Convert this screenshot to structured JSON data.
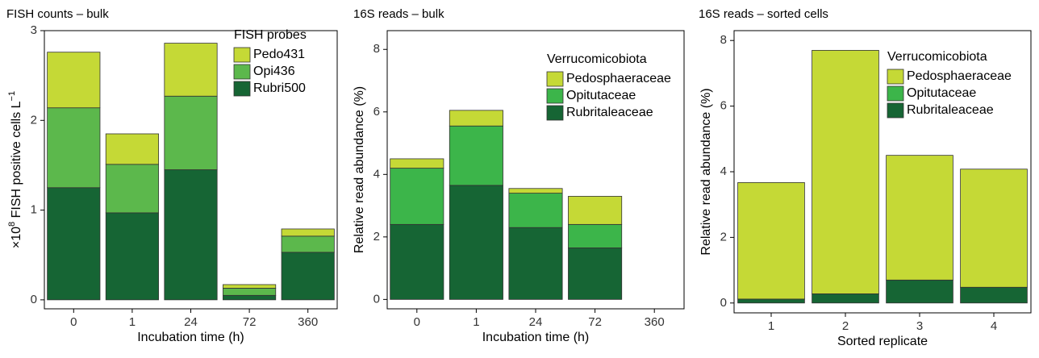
{
  "chart_data": [
    {
      "type": "bar",
      "stacked": true,
      "title": "FISH counts – bulk",
      "ylabel_parts": [
        "×10",
        "8",
        " FISH positive cells L",
        "−1"
      ],
      "xlabel": "Incubation time (h)",
      "legend_title": "FISH probes",
      "categories": [
        "0",
        "1",
        "24",
        "72",
        "360"
      ],
      "series": [
        {
          "name": "Rubri500",
          "color": "#166534",
          "values": [
            1.25,
            0.97,
            1.45,
            0.05,
            0.53
          ]
        },
        {
          "name": "Opi436",
          "color": "#5cb84c",
          "values": [
            0.89,
            0.54,
            0.82,
            0.08,
            0.18
          ]
        },
        {
          "name": "Pedo431",
          "color": "#c5d936",
          "values": [
            0.62,
            0.34,
            0.59,
            0.04,
            0.08
          ]
        }
      ],
      "ylim": [
        -0.1,
        3
      ],
      "yticks": [
        0,
        1,
        2,
        3
      ]
    },
    {
      "type": "bar",
      "stacked": true,
      "title": "16S reads – bulk",
      "ylabel_parts": [
        "Relative read abundance (%)"
      ],
      "xlabel": "Incubation time (h)",
      "legend_title": "Verrucomicobiota",
      "categories": [
        "0",
        "1",
        "24",
        "72",
        "360"
      ],
      "series": [
        {
          "name": "Rubritaleaceae",
          "color": "#166534",
          "values": [
            2.4,
            3.65,
            2.3,
            1.65,
            null
          ]
        },
        {
          "name": "Opitutaceae",
          "color": "#3cb54a",
          "values": [
            1.8,
            1.9,
            1.1,
            0.75,
            null
          ]
        },
        {
          "name": "Pedosphaeraceae",
          "color": "#c5d936",
          "values": [
            0.3,
            0.5,
            0.15,
            0.9,
            null
          ]
        }
      ],
      "ylim": [
        -0.3,
        8.6
      ],
      "yticks": [
        0,
        2,
        4,
        6,
        8
      ]
    },
    {
      "type": "bar",
      "stacked": true,
      "title": "16S reads – sorted cells",
      "ylabel_parts": [
        "Relative read abundance (%)"
      ],
      "xlabel": "Sorted replicate",
      "legend_title": "Verrucomicobiota",
      "categories": [
        "1",
        "2",
        "3",
        "4"
      ],
      "series": [
        {
          "name": "Rubritaleaceae",
          "color": "#166534",
          "values": [
            0.12,
            0.28,
            0.7,
            0.48
          ]
        },
        {
          "name": "Opitutaceae",
          "color": "#3cb54a",
          "values": [
            0,
            0,
            0,
            0
          ]
        },
        {
          "name": "Pedosphaeraceae",
          "color": "#c5d936",
          "values": [
            3.55,
            7.42,
            3.8,
            3.6
          ]
        }
      ],
      "ylim": [
        -0.3,
        8.3
      ],
      "yticks": [
        0,
        2,
        4,
        6,
        8
      ]
    }
  ]
}
